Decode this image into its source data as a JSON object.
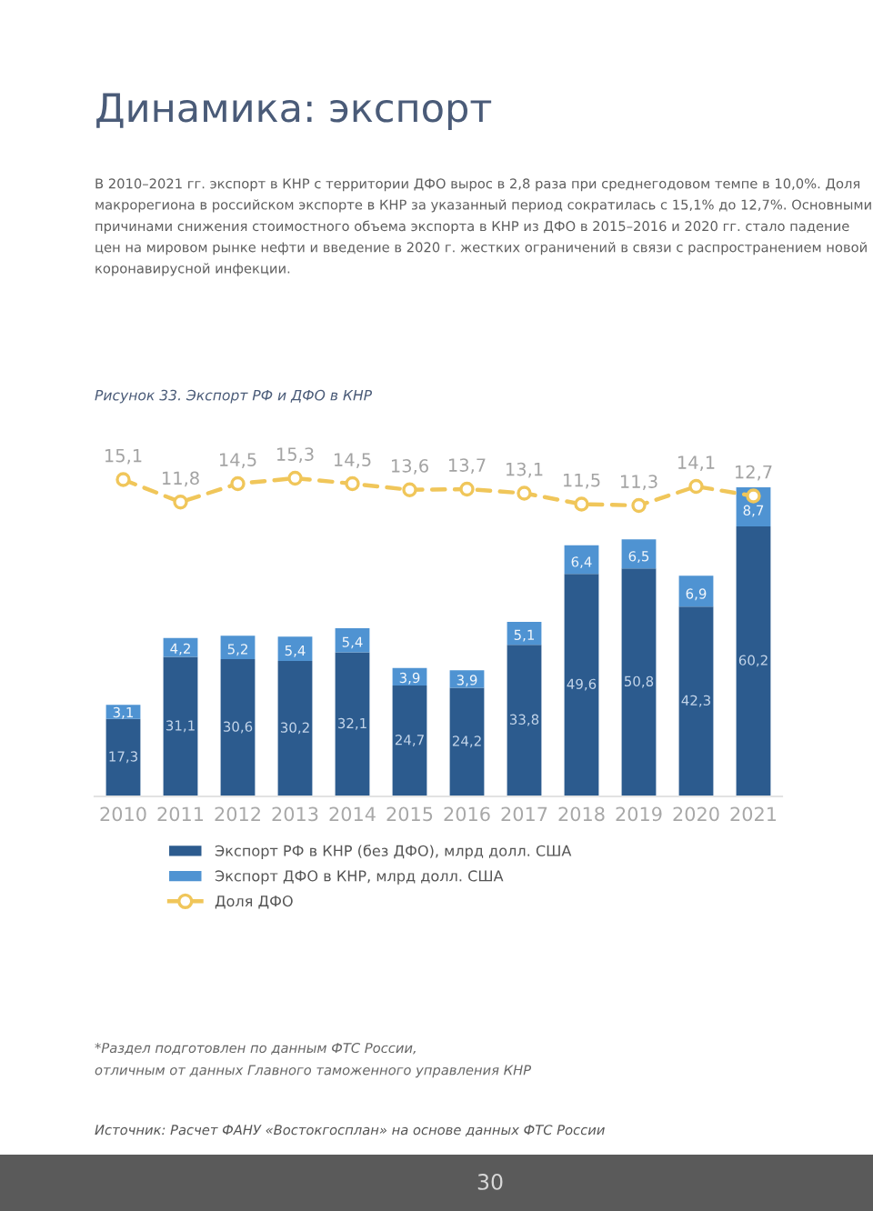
{
  "chart_data": {
    "type": "bar",
    "title": "Динамика: экспорт",
    "subtitle": "В 2010–2021 гг. экспорт в КНР с территории ДФО вырос в 2,8 раза при среднегодовом темпе в 10,0%. Доля макрорегиона в российском экспорте в КНР за указанный период сократилась с 15,1% до 12,7%. Основными причинами снижения стоимостного объема экспорта в КНР из ДФО в 2015–2016 и 2020 гг. стало падение цен на мировом рынке нефти и введение в 2020 г. жестких ограничений в связи с распространением новой коронавирусной инфекции.",
    "categories": [
      "2010",
      "2011",
      "2012",
      "2013",
      "2014",
      "2015",
      "2016",
      "2017",
      "2018",
      "2019",
      "2020",
      "2021"
    ],
    "stacked": true,
    "series": [
      {
        "name": "Экспорт РФ в КНР (без ДФО), млрд долл. США",
        "color": "#2c5b8e",
        "values": [
          17.3,
          31.1,
          30.6,
          30.2,
          32.1,
          24.7,
          24.2,
          33.8,
          49.6,
          50.8,
          42.3,
          60.2
        ],
        "value_labels": [
          "17,3",
          "31,1",
          "30,6",
          "30,2",
          "32,1",
          "24,7",
          "24,2",
          "33,8",
          "49,6",
          "50,8",
          "42,3",
          "60,2"
        ]
      },
      {
        "name": "Экспорт ДФО в КНР, млрд долл. США",
        "color": "#4f93d2",
        "values": [
          3.1,
          4.2,
          5.2,
          5.4,
          5.4,
          3.9,
          3.9,
          5.1,
          6.4,
          6.5,
          6.9,
          8.7
        ],
        "value_labels": [
          "3,1",
          "4,2",
          "5,2",
          "5,4",
          "5,4",
          "3,9",
          "3,9",
          "5,1",
          "6,4",
          "6,5",
          "6,9",
          "8,7"
        ]
      },
      {
        "name": "Доля ДФО",
        "type": "line",
        "axis": "y2",
        "color": "#f0c65a",
        "values": [
          15.1,
          11.8,
          14.5,
          15.3,
          14.5,
          13.6,
          13.7,
          13.1,
          11.5,
          11.3,
          14.1,
          12.7
        ],
        "value_labels": [
          "15,1",
          "11,8",
          "14,5",
          "15,3",
          "14,5",
          "13,6",
          "13,7",
          "13,1",
          "11,5",
          "11,3",
          "14,1",
          "12,7"
        ]
      }
    ],
    "marker": "circle",
    "line_style": "dashed",
    "legend": "bottom",
    "tick_labels": "x",
    "annotations": [
      "Рисунок 33. Экспорт РФ и ДФО в КНР",
      "*Раздел подготовлен по данным ФТС России,\nотличным от данных Главного таможенного управления КНР",
      "Источник: Расчет ФАНУ «Востокгосплан» на основе данных ФТС России",
      "30"
    ]
  }
}
